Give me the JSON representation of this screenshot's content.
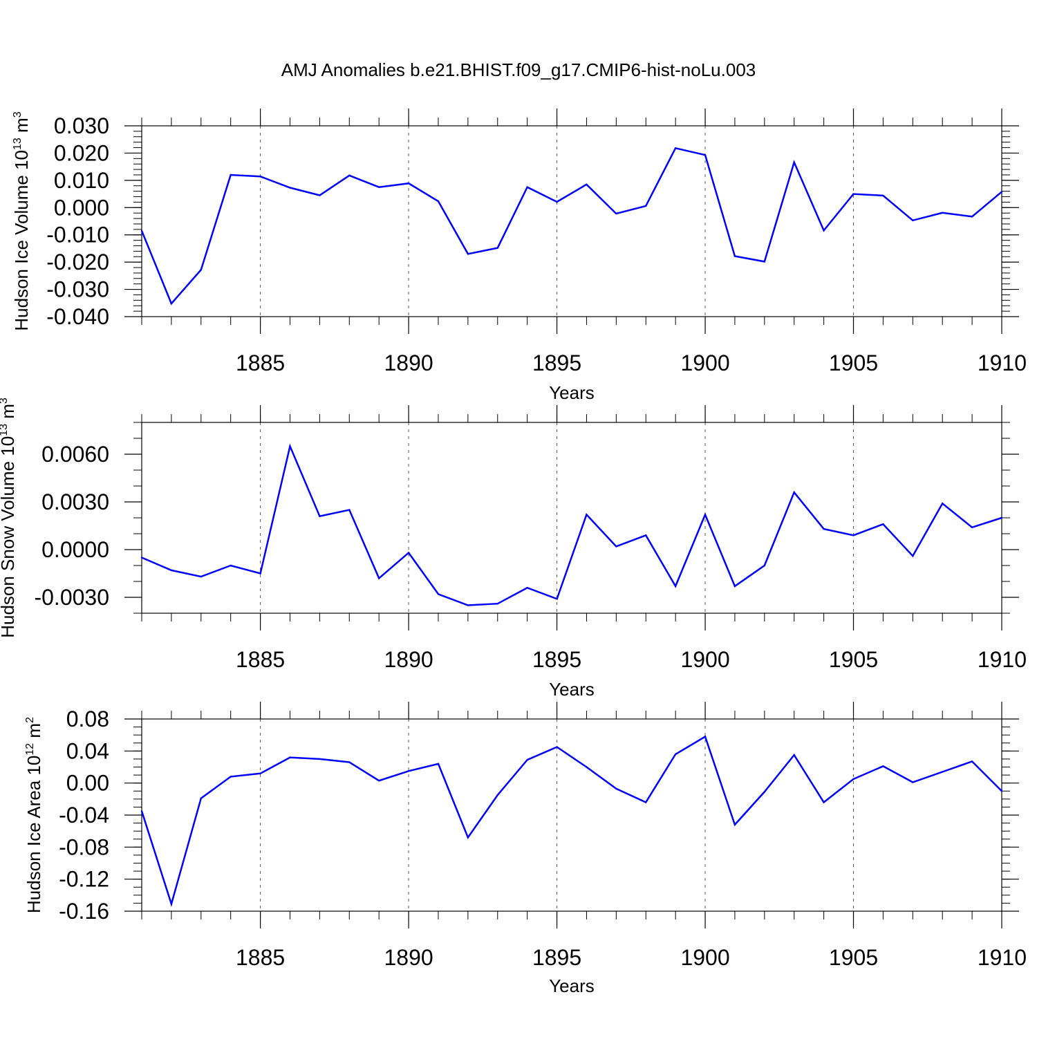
{
  "title": "AMJ Anomalies b.e21.BHIST.f09_g17.CMIP6-hist-noLu.003",
  "line_color": "#0000ff",
  "chart_data": [
    {
      "type": "line",
      "xlabel": "Years",
      "ylabel_text": "Hudson Ice Volume 10",
      "ylabel_sup": "13",
      "ylabel_unit": "m",
      "ylabel_unit_sup": "3",
      "xlim": [
        1881,
        1910
      ],
      "ylim": [
        -0.04,
        0.03
      ],
      "yticks": [
        -0.04,
        -0.03,
        -0.02,
        -0.01,
        0.0,
        0.01,
        0.02,
        0.03
      ],
      "ytick_labels": [
        "-0.040",
        "-0.030",
        "-0.020",
        "-0.010",
        "0.000",
        "0.010",
        "0.020",
        "0.030"
      ],
      "yminor_step": 0.002,
      "xticks": [
        1885,
        1890,
        1895,
        1900,
        1905,
        1910
      ],
      "xtick_labels": [
        "1885",
        "1890",
        "1895",
        "1900",
        "1905",
        "1910"
      ],
      "grid": "vertical dashed at major x ticks",
      "x": [
        1881,
        1882,
        1883,
        1884,
        1885,
        1886,
        1887,
        1888,
        1889,
        1890,
        1891,
        1892,
        1893,
        1894,
        1895,
        1896,
        1897,
        1898,
        1899,
        1900,
        1901,
        1902,
        1903,
        1904,
        1905,
        1906,
        1907,
        1908,
        1909,
        1910
      ],
      "values": [
        -0.0085,
        -0.0352,
        -0.0228,
        0.012,
        0.0114,
        0.0073,
        0.0045,
        0.0118,
        0.0075,
        0.0089,
        0.0023,
        -0.017,
        -0.0148,
        0.0075,
        0.0021,
        0.0085,
        -0.0022,
        0.0006,
        0.0218,
        0.0193,
        -0.0178,
        -0.0198,
        0.0166,
        -0.0084,
        0.005,
        0.0044,
        -0.0047,
        -0.0019,
        -0.0033,
        0.0058
      ]
    },
    {
      "type": "line",
      "xlabel": "Years",
      "ylabel_text": "Hudson Snow Volume 10",
      "ylabel_sup": "13",
      "ylabel_unit": "m",
      "ylabel_unit_sup": "3",
      "xlim": [
        1881,
        1910
      ],
      "ylim": [
        -0.004,
        0.008
      ],
      "yticks": [
        -0.003,
        0.0,
        0.003,
        0.006
      ],
      "ytick_labels": [
        "-0.0030",
        "0.0000",
        "0.0030",
        "0.0060"
      ],
      "yminor_step": 0.001,
      "xticks": [
        1885,
        1890,
        1895,
        1900,
        1905,
        1910
      ],
      "xtick_labels": [
        "1885",
        "1890",
        "1895",
        "1900",
        "1905",
        "1910"
      ],
      "grid": "vertical dashed at major x ticks",
      "x": [
        1881,
        1882,
        1883,
        1884,
        1885,
        1886,
        1887,
        1888,
        1889,
        1890,
        1891,
        1892,
        1893,
        1894,
        1895,
        1896,
        1897,
        1898,
        1899,
        1900,
        1901,
        1902,
        1903,
        1904,
        1905,
        1906,
        1907,
        1908,
        1909,
        1910
      ],
      "values": [
        -0.0005,
        -0.0013,
        -0.0017,
        -0.001,
        -0.0015,
        0.0065,
        0.0021,
        0.0025,
        -0.0018,
        -0.0002,
        -0.0028,
        -0.0035,
        -0.0034,
        -0.0024,
        -0.0031,
        0.0022,
        0.0002,
        0.0009,
        -0.0023,
        0.0022,
        -0.0023,
        -0.001,
        0.0036,
        0.0013,
        0.0009,
        0.0016,
        -0.0004,
        0.0029,
        0.0014,
        0.002
      ]
    },
    {
      "type": "line",
      "xlabel": "Years",
      "ylabel_text": "Hudson Ice Area 10",
      "ylabel_sup": "12",
      "ylabel_unit": "m",
      "ylabel_unit_sup": "2",
      "xlim": [
        1881,
        1910
      ],
      "ylim": [
        -0.16,
        0.08
      ],
      "yticks": [
        -0.16,
        -0.12,
        -0.08,
        -0.04,
        0.0,
        0.04,
        0.08
      ],
      "ytick_labels": [
        "-0.16",
        "-0.12",
        "-0.08",
        "-0.04",
        "0.00",
        "0.04",
        "0.08"
      ],
      "yminor_step": 0.01,
      "xticks": [
        1885,
        1890,
        1895,
        1900,
        1905,
        1910
      ],
      "xtick_labels": [
        "1885",
        "1890",
        "1895",
        "1900",
        "1905",
        "1910"
      ],
      "grid": "vertical dashed at major x ticks",
      "x": [
        1881,
        1882,
        1883,
        1884,
        1885,
        1886,
        1887,
        1888,
        1889,
        1890,
        1891,
        1892,
        1893,
        1894,
        1895,
        1896,
        1897,
        1898,
        1899,
        1900,
        1901,
        1902,
        1903,
        1904,
        1905,
        1906,
        1907,
        1908,
        1909,
        1910
      ],
      "values": [
        -0.035,
        -0.151,
        -0.019,
        0.008,
        0.012,
        0.032,
        0.03,
        0.026,
        0.003,
        0.015,
        0.024,
        -0.068,
        -0.015,
        0.029,
        0.045,
        0.02,
        -0.007,
        -0.024,
        0.036,
        0.058,
        -0.052,
        -0.011,
        0.035,
        -0.024,
        0.005,
        0.021,
        0.001,
        0.014,
        0.027,
        -0.01
      ]
    }
  ]
}
